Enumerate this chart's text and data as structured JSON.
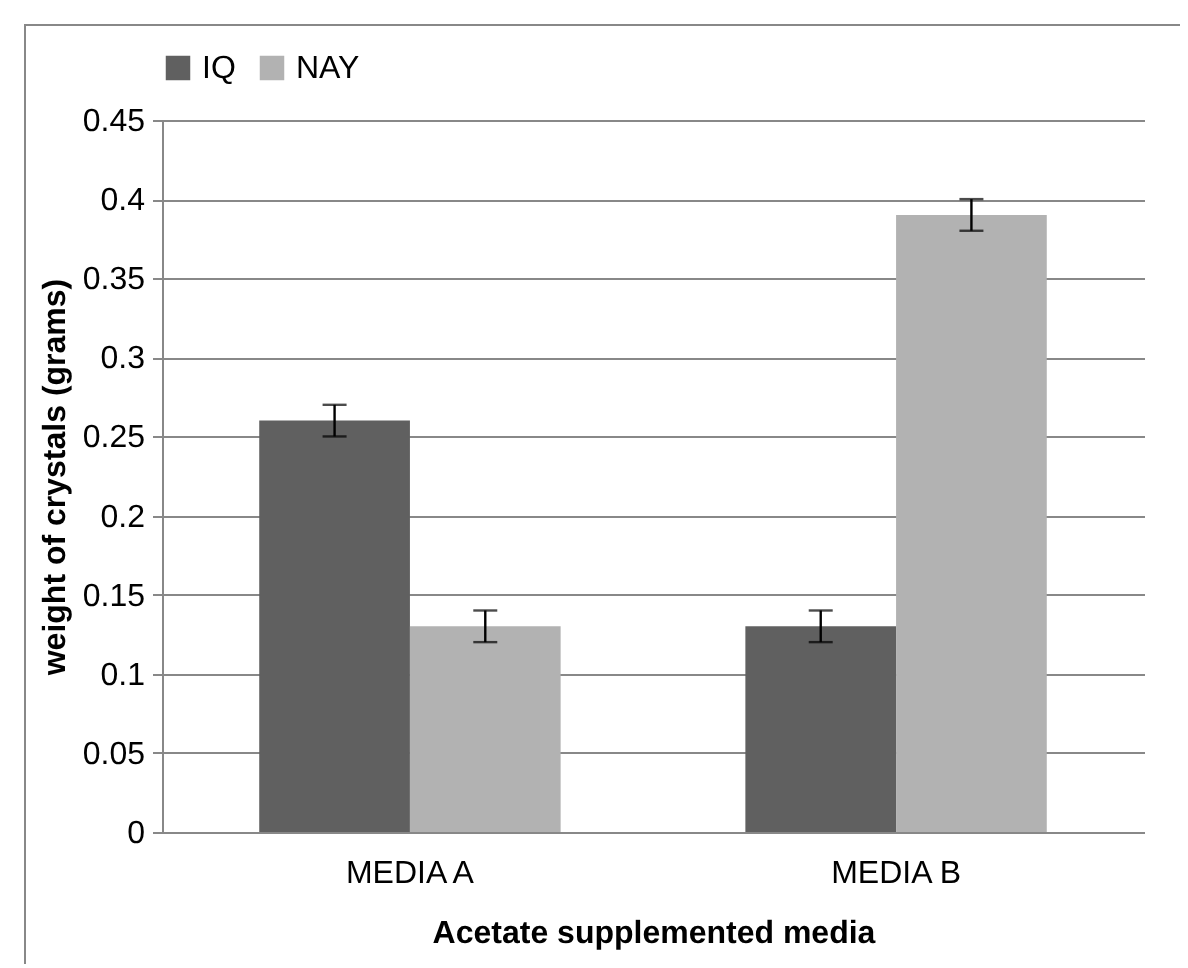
{
  "chart_data": {
    "type": "bar",
    "xlabel": "Acetate supplemented media",
    "ylabel": "weight of crystals (grams)",
    "categories": [
      "MEDIA A",
      "MEDIA B"
    ],
    "series": [
      {
        "name": "IQ",
        "color": "#606060",
        "values": [
          0.26,
          0.13
        ],
        "errors": [
          0.01,
          0.01
        ]
      },
      {
        "name": "NAY",
        "color": "#b2b2b2",
        "values": [
          0.13,
          0.39
        ],
        "errors": [
          0.01,
          0.01
        ]
      }
    ],
    "ylim": [
      0,
      0.45
    ],
    "yticks": [
      0,
      0.05,
      0.1,
      0.15,
      0.2,
      0.25,
      0.3,
      0.35,
      0.4,
      0.45
    ],
    "grid": "y",
    "legend": "top"
  }
}
